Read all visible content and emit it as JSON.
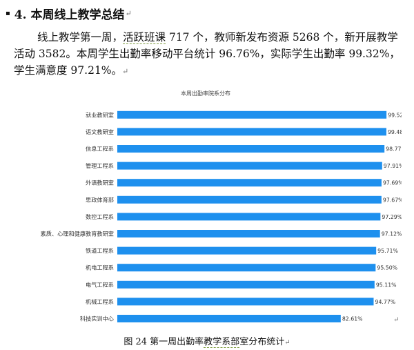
{
  "heading": {
    "bullet": "▪",
    "text": "4. 本周线上教学总结",
    "mark": "↵"
  },
  "paragraph": {
    "p1": "线上教学第一周，",
    "p2": "活跃班课",
    "p3": " 717 个，教师新发布资源 5268 个，新开展教学活动 3582。本周学生出勤率移动平台统计 96.76%，实际学生出勤率 99.32%，学生满意度 97.21%。",
    "mark": "↵"
  },
  "chart_data": {
    "type": "bar",
    "orientation": "horizontal",
    "title": "本周出勤率院系分布",
    "categories": [
      "就业教研室",
      "语文教研室",
      "信息工程系",
      "管理工程系",
      "外语教研室",
      "思政体育部",
      "数控工程系",
      "素质、心理和健康教育教研室",
      "铁道工程系",
      "机电工程系",
      "电气工程系",
      "机械工程系",
      "科技实训中心"
    ],
    "values": [
      99.52,
      99.48,
      98.77,
      97.91,
      97.69,
      97.67,
      97.29,
      97.12,
      95.71,
      95.5,
      95.11,
      94.77,
      82.61
    ],
    "labels": [
      "99.52%",
      "99.48%",
      "98.77%",
      "97.91%",
      "97.69%",
      "97.67%",
      "97.29%",
      "97.12%",
      "95.71%",
      "95.50%",
      "95.11%",
      "94.77%",
      "82.61%"
    ],
    "xlim": [
      0,
      100
    ],
    "grid": false,
    "legend": "none",
    "bar_color": "#1e90ee"
  },
  "return_mark": "↵",
  "caption": {
    "pre": "图 24   第一周出勤率",
    "u": "教学系部",
    "post": "室分布统计",
    "mark": "↵"
  }
}
